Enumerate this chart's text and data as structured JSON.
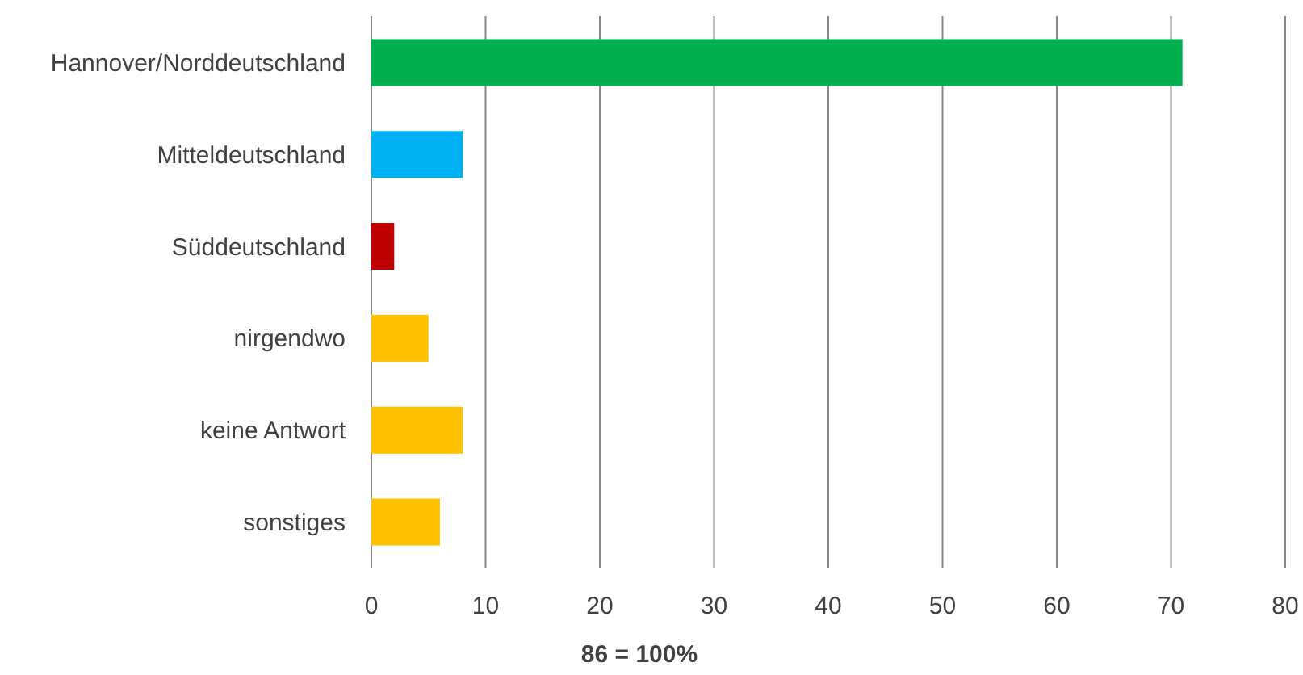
{
  "chart_data": {
    "type": "bar",
    "orientation": "horizontal",
    "categories": [
      "Hannover/Norddeutschland",
      "Mitteldeutschland",
      "Süddeutschland",
      "nirgendwo",
      "keine Antwort",
      "sonstiges"
    ],
    "values": [
      71,
      8,
      2,
      5,
      8,
      6
    ],
    "colors": [
      "#00b050",
      "#00b0f0",
      "#c00000",
      "#ffc000",
      "#ffc000",
      "#ffc000"
    ],
    "xlim": [
      0,
      80
    ],
    "xticks": [
      0,
      10,
      20,
      30,
      40,
      50,
      60,
      70,
      80
    ],
    "grid": "x",
    "xlabel": "86 = 100%"
  }
}
